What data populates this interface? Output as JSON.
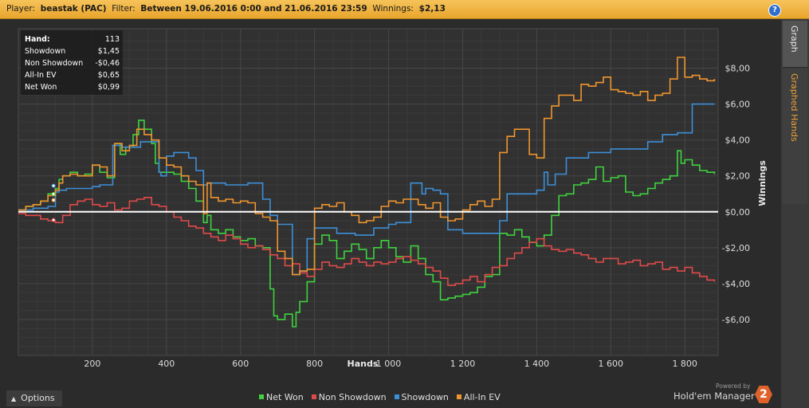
{
  "header": {
    "player_label": "Player:",
    "player_value": "beastak (PAC)",
    "filter_label": "Filter:",
    "filter_value": "Between 19.06.2016 0:00 and 21.06.2016 23:59",
    "winnings_label": "Winnings:",
    "winnings_value": "$2,13",
    "help_label": "?"
  },
  "side_tabs": [
    {
      "label": "Graph",
      "active": true
    },
    {
      "label": "Graphed Hands",
      "active": false
    }
  ],
  "stats": [
    {
      "label": "Hand:",
      "value": "113"
    },
    {
      "label": "Showdown",
      "value": "$1,45"
    },
    {
      "label": "Non Showdown",
      "value": "-$0,46"
    },
    {
      "label": "All-In EV",
      "value": "$0,65"
    },
    {
      "label": "Net Won",
      "value": "$0,99"
    }
  ],
  "options_label": "Options",
  "powered_by": "Powered by",
  "brand": "Hold'em Manager",
  "brand_badge": "2",
  "chart_data": {
    "type": "line",
    "xlabel": "Hands",
    "ylabel": "Winnings",
    "xlim": [
      0,
      1890
    ],
    "ylim": [
      -8.0,
      10.2
    ],
    "x_ticks": [
      200,
      400,
      600,
      800,
      1000,
      1200,
      1400,
      1600,
      1800
    ],
    "x_tick_labels": [
      "200",
      "400",
      "600",
      "800",
      "1 000",
      "1 200",
      "1 400",
      "1 600",
      "1 800"
    ],
    "y_ticks": [
      8,
      6,
      4,
      2,
      0,
      -2,
      -4,
      -6
    ],
    "y_tick_labels": [
      "$8,00",
      "$6,00",
      "$4,00",
      "$2,00",
      "$0,00",
      "-$2,00",
      "-$4,00",
      "-$6,00"
    ],
    "grid": true,
    "legend_position": "bottom",
    "series": [
      {
        "name": "Net Won",
        "color": "#3fd23f",
        "x": [
          0,
          20,
          40,
          60,
          80,
          100,
          110,
          120,
          140,
          160,
          180,
          200,
          220,
          240,
          260,
          275,
          290,
          310,
          325,
          340,
          360,
          370,
          380,
          400,
          420,
          440,
          460,
          480,
          500,
          510,
          520,
          540,
          560,
          580,
          600,
          620,
          640,
          660,
          680,
          690,
          700,
          720,
          740,
          750,
          760,
          780,
          800,
          820,
          840,
          860,
          880,
          900,
          920,
          940,
          960,
          980,
          1000,
          1020,
          1040,
          1060,
          1080,
          1100,
          1120,
          1140,
          1160,
          1180,
          1200,
          1220,
          1240,
          1260,
          1280,
          1300,
          1320,
          1340,
          1360,
          1380,
          1400,
          1420,
          1440,
          1460,
          1480,
          1500,
          1520,
          1540,
          1560,
          1580,
          1600,
          1620,
          1640,
          1660,
          1680,
          1700,
          1720,
          1740,
          1760,
          1780,
          1790,
          1800,
          1820,
          1840,
          1860,
          1880
        ],
        "y": [
          0.1,
          0.3,
          0.4,
          0.6,
          1.0,
          1.3,
          1.8,
          2.0,
          2.2,
          2.0,
          2.1,
          2.6,
          2.2,
          1.9,
          3.8,
          3.2,
          3.6,
          4.3,
          5.1,
          4.6,
          3.8,
          2.7,
          2.2,
          2.2,
          2.1,
          1.7,
          1.3,
          0.6,
          -0.6,
          -0.2,
          -1.0,
          -1.2,
          -1.0,
          -1.4,
          -1.6,
          -1.5,
          -1.9,
          -2.0,
          -4.3,
          -5.8,
          -6.0,
          -5.7,
          -6.4,
          -5.6,
          -5.0,
          -3.9,
          -1.8,
          -1.3,
          -1.6,
          -2.6,
          -2.2,
          -1.8,
          -2.1,
          -2.6,
          -2.0,
          -1.6,
          -2.0,
          -2.5,
          -2.8,
          -1.9,
          -2.6,
          -3.5,
          -3.9,
          -4.9,
          -4.8,
          -4.7,
          -4.6,
          -4.5,
          -4.2,
          -3.6,
          -3.5,
          -1.2,
          -1.3,
          -1.0,
          -1.4,
          -1.7,
          -1.9,
          -1.3,
          -0.2,
          0.9,
          1.0,
          1.5,
          1.6,
          1.8,
          2.5,
          1.7,
          1.9,
          2.0,
          1.1,
          0.9,
          1.0,
          1.3,
          1.6,
          1.8,
          2.0,
          3.4,
          2.7,
          2.9,
          2.6,
          2.3,
          2.2,
          2.1
        ]
      },
      {
        "name": "Non Showdown",
        "color": "#e04a4a",
        "x": [
          0,
          20,
          40,
          60,
          80,
          100,
          120,
          140,
          160,
          180,
          200,
          220,
          240,
          260,
          280,
          300,
          320,
          340,
          360,
          380,
          400,
          420,
          440,
          460,
          480,
          500,
          520,
          540,
          560,
          580,
          600,
          620,
          640,
          660,
          680,
          700,
          720,
          740,
          760,
          780,
          800,
          820,
          840,
          860,
          880,
          900,
          920,
          940,
          960,
          980,
          1000,
          1020,
          1040,
          1060,
          1080,
          1100,
          1120,
          1140,
          1160,
          1180,
          1200,
          1220,
          1240,
          1260,
          1280,
          1300,
          1320,
          1340,
          1360,
          1380,
          1400,
          1420,
          1440,
          1460,
          1480,
          1500,
          1520,
          1540,
          1560,
          1580,
          1600,
          1620,
          1640,
          1660,
          1680,
          1700,
          1720,
          1740,
          1760,
          1780,
          1800,
          1820,
          1840,
          1860,
          1880
        ],
        "y": [
          -0.1,
          -0.2,
          -0.2,
          -0.4,
          -0.5,
          -0.6,
          -0.2,
          0.4,
          0.6,
          0.7,
          0.4,
          0.3,
          0.5,
          0.1,
          0.2,
          0.6,
          0.7,
          0.8,
          0.4,
          0.3,
          0.0,
          -0.3,
          -0.5,
          -0.8,
          -0.9,
          -1.2,
          -1.4,
          -1.6,
          -1.3,
          -1.5,
          -1.8,
          -2.0,
          -1.9,
          -2.1,
          -2.4,
          -2.6,
          -3.0,
          -2.9,
          -3.4,
          -3.6,
          -3.2,
          -2.8,
          -3.0,
          -3.1,
          -2.9,
          -2.6,
          -2.8,
          -3.0,
          -2.8,
          -2.9,
          -2.8,
          -2.6,
          -2.5,
          -2.7,
          -2.9,
          -3.1,
          -3.3,
          -3.7,
          -4.1,
          -4.0,
          -3.8,
          -3.6,
          -3.9,
          -3.5,
          -3.1,
          -3.0,
          -2.6,
          -2.3,
          -2.0,
          -1.7,
          -1.5,
          -1.9,
          -2.1,
          -2.2,
          -2.1,
          -2.3,
          -2.4,
          -2.6,
          -2.8,
          -2.6,
          -2.6,
          -2.9,
          -2.8,
          -2.7,
          -3.0,
          -2.9,
          -2.8,
          -3.2,
          -3.1,
          -3.3,
          -3.1,
          -3.4,
          -3.6,
          -3.8,
          -3.9
        ]
      },
      {
        "name": "Showdown",
        "color": "#3d8fd8",
        "x": [
          0,
          40,
          80,
          100,
          110,
          130,
          160,
          200,
          220,
          255,
          280,
          320,
          330,
          370,
          380,
          385,
          400,
          420,
          460,
          480,
          500,
          510,
          560,
          620,
          660,
          680,
          700,
          740,
          760,
          780,
          800,
          860,
          910,
          940,
          960,
          1000,
          1020,
          1060,
          1090,
          1100,
          1120,
          1140,
          1160,
          1200,
          1300,
          1320,
          1400,
          1420,
          1430,
          1450,
          1480,
          1540,
          1600,
          1680,
          1700,
          1740,
          1780,
          1800,
          1820,
          1860,
          1880
        ],
        "y": [
          0.1,
          0.2,
          0.3,
          1.1,
          1.2,
          1.3,
          1.3,
          1.4,
          1.5,
          3.7,
          3.6,
          3.6,
          3.9,
          3.9,
          2.2,
          2.0,
          3.1,
          3.3,
          3.0,
          2.3,
          1.5,
          1.6,
          1.5,
          1.6,
          0.7,
          -0.2,
          -0.7,
          -3.5,
          -3.3,
          -1.5,
          -0.9,
          -1.2,
          -1.3,
          -1.3,
          -0.9,
          -0.7,
          -0.6,
          1.6,
          1.0,
          1.3,
          1.2,
          1.0,
          -1.0,
          -1.2,
          -0.5,
          1.0,
          1.2,
          2.2,
          1.5,
          2.1,
          3.0,
          3.3,
          3.5,
          3.5,
          3.9,
          4.3,
          4.4,
          4.4,
          6.0,
          6.0,
          6.0
        ]
      },
      {
        "name": "All-In EV",
        "color": "#f0952e",
        "x": [
          0,
          20,
          40,
          60,
          80,
          100,
          110,
          120,
          140,
          160,
          180,
          200,
          220,
          240,
          260,
          280,
          300,
          320,
          340,
          360,
          380,
          400,
          420,
          440,
          460,
          480,
          500,
          510,
          520,
          540,
          560,
          580,
          600,
          620,
          640,
          660,
          680,
          700,
          720,
          740,
          760,
          780,
          800,
          820,
          840,
          860,
          880,
          900,
          920,
          940,
          960,
          980,
          1000,
          1020,
          1040,
          1060,
          1080,
          1100,
          1120,
          1140,
          1160,
          1180,
          1200,
          1220,
          1240,
          1260,
          1280,
          1300,
          1320,
          1340,
          1360,
          1380,
          1400,
          1420,
          1440,
          1460,
          1480,
          1500,
          1520,
          1540,
          1560,
          1580,
          1600,
          1620,
          1640,
          1660,
          1680,
          1700,
          1720,
          1740,
          1760,
          1780,
          1800,
          1820,
          1840,
          1860,
          1880
        ],
        "y": [
          0.1,
          0.3,
          0.4,
          0.6,
          0.9,
          1.2,
          1.6,
          2.0,
          2.1,
          2.0,
          2.0,
          2.6,
          2.5,
          2.0,
          3.8,
          3.4,
          3.7,
          4.6,
          4.3,
          4.0,
          3.0,
          2.6,
          2.5,
          2.0,
          1.7,
          1.5,
          -0.1,
          1.6,
          0.8,
          0.6,
          0.7,
          0.5,
          0.6,
          0.5,
          -0.1,
          -0.3,
          -0.5,
          -2.2,
          -2.6,
          -3.5,
          -3.3,
          -3.2,
          0.2,
          0.4,
          0.3,
          0.5,
          0.0,
          -0.2,
          -0.6,
          -0.5,
          -0.3,
          0.3,
          0.6,
          0.5,
          0.7,
          0.7,
          0.4,
          0.2,
          0.5,
          -0.3,
          -0.5,
          -0.4,
          0.1,
          0.4,
          0.6,
          0.3,
          0.7,
          3.3,
          4.2,
          4.6,
          4.6,
          3.2,
          3.0,
          5.2,
          5.9,
          6.5,
          6.5,
          6.2,
          7.1,
          7.0,
          7.2,
          7.5,
          6.8,
          6.7,
          6.6,
          6.5,
          6.7,
          6.2,
          6.5,
          6.6,
          7.4,
          8.6,
          7.5,
          7.6,
          7.4,
          7.3,
          7.4
        ]
      }
    ]
  }
}
